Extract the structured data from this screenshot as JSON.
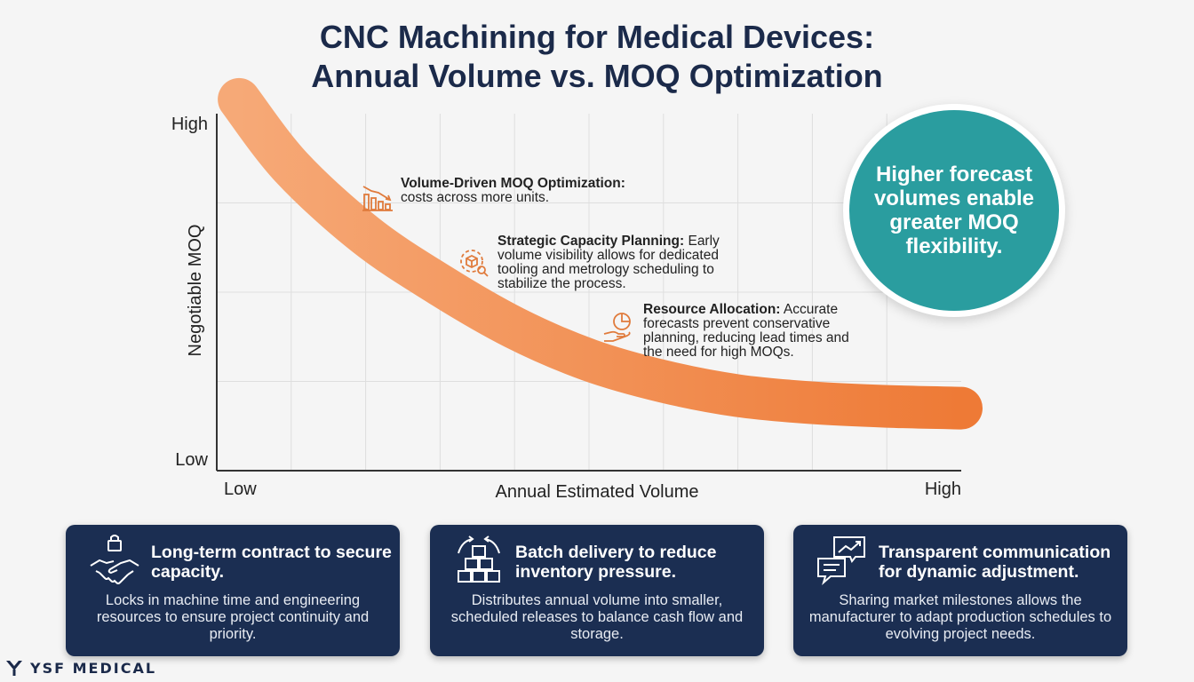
{
  "title": {
    "line1": "CNC Machining for Medical Devices:",
    "line2": "Annual Volume vs. MOQ Optimization"
  },
  "chart_data": {
    "type": "line",
    "x_label": "Annual Estimated Volume",
    "y_label": "Negotiable MOQ",
    "x_tick_labels": [
      "Low",
      "High"
    ],
    "y_tick_labels": [
      "High",
      "Low"
    ],
    "xlim": [
      0,
      100
    ],
    "ylim": [
      0,
      100
    ],
    "grid": true,
    "series": [
      {
        "name": "Negotiable MOQ",
        "color": "#f08a4b",
        "x": [
          3,
          10,
          20,
          30,
          40,
          50,
          60,
          70,
          80,
          90,
          100
        ],
        "y": [
          104,
          85,
          66,
          52,
          40,
          31,
          25,
          21,
          19,
          18,
          17.5
        ]
      }
    ],
    "annotations": [
      {
        "icon": "bar-chart-decline-icon",
        "heading": "Volume-Driven MOQ Optimization:",
        "lines": [
          "costs across more units."
        ]
      },
      {
        "icon": "gear-box-search-icon",
        "heading": "Strategic Capacity Planning:",
        "lines": [
          " Early",
          "volume visibility allows for dedicated",
          "tooling and metrology scheduling to",
          "stabilize the process."
        ]
      },
      {
        "icon": "hand-pie-chart-icon",
        "heading": "Resource Allocation:",
        "lines": [
          " Accurate",
          "forecasts prevent conservative",
          "planning, reducing lead times and",
          "the need for high MOQs."
        ]
      }
    ]
  },
  "callout": {
    "text": "Higher forecast volumes enable greater MOQ flexibility.",
    "color": "#2a9d9f"
  },
  "cards": [
    {
      "icon": "handshake-lock-icon",
      "title": "Long-term contract to secure capacity.",
      "body": "Locks in machine time and engineering resources to ensure project continuity and priority."
    },
    {
      "icon": "boxes-cycle-icon",
      "title": "Batch delivery to reduce inventory pressure.",
      "body": "Distributes annual volume into smaller, scheduled releases to balance cash flow and storage."
    },
    {
      "icon": "chat-trend-icon",
      "title": "Transparent communication for dynamic adjustment.",
      "body": "Sharing market milestones allows the manufacturer to adapt production schedules to evolving project needs."
    }
  ],
  "brand": {
    "name": "YSF MEDICAL"
  },
  "colors": {
    "navy": "#1b2e52",
    "teal": "#2a9d9f",
    "orange": "#f08a4b",
    "title": "#1b2a4a"
  }
}
